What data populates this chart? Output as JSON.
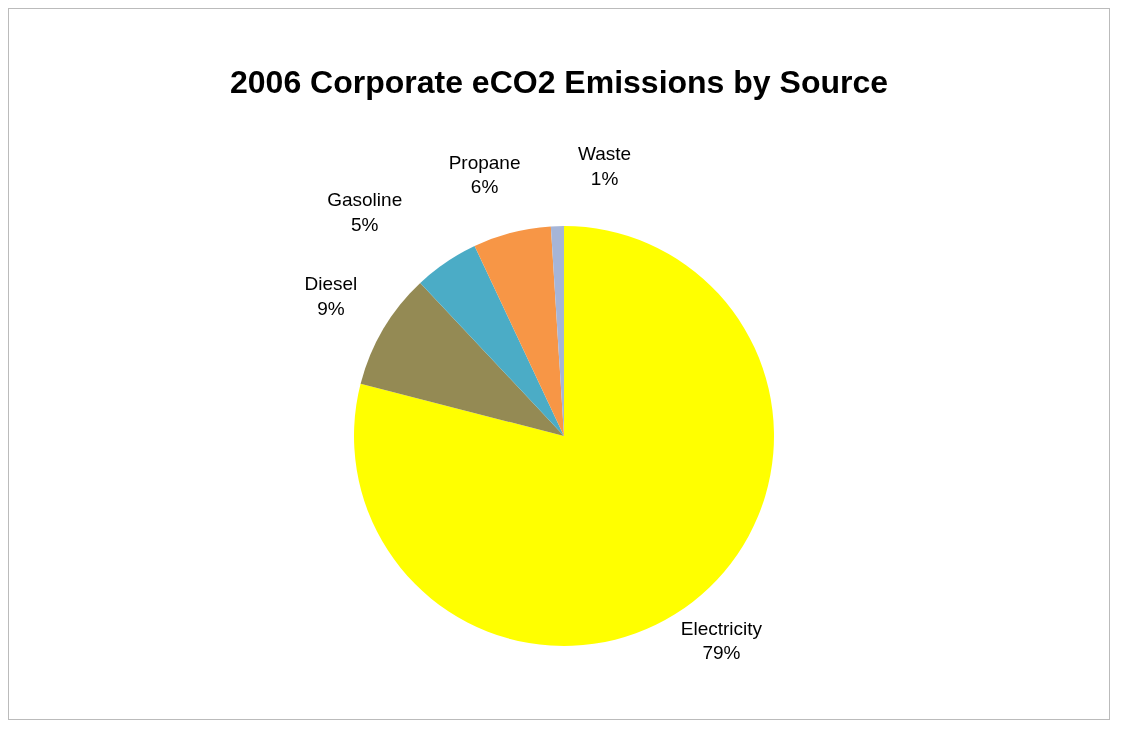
{
  "chart_data": {
    "type": "pie",
    "title": "2006 Corporate eCO2 Emissions by Source",
    "categories": [
      "Electricity",
      "Diesel",
      "Gasoline",
      "Propane",
      "Waste"
    ],
    "values": [
      79,
      9,
      5,
      6,
      1
    ],
    "colors": [
      "#ffff00",
      "#948a54",
      "#4bacc6",
      "#f79646",
      "#a6b5d7"
    ],
    "value_labels": [
      "79%",
      "9%",
      "5%",
      "6%",
      "1%"
    ]
  }
}
